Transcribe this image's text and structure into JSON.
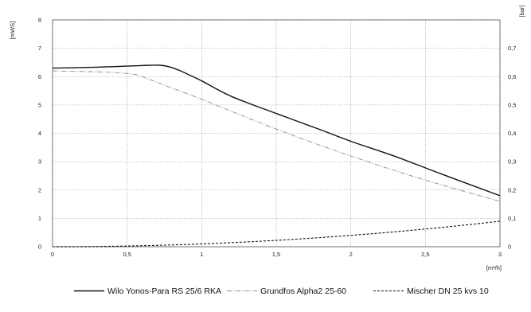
{
  "chart_data": {
    "type": "line",
    "title": "",
    "xlabel": "[m³/h]",
    "ylabel": "[mWS]",
    "y2label": "[bar]",
    "xlim": [
      0,
      3
    ],
    "ylim": [
      0,
      8
    ],
    "y2lim": [
      0,
      0.8
    ],
    "grid": true,
    "legend_position": "bottom",
    "x_ticks": [
      {
        "value": 0,
        "label": "0"
      },
      {
        "value": 0.5,
        "label": "0,5"
      },
      {
        "value": 1,
        "label": "1"
      },
      {
        "value": 1.5,
        "label": "1,5"
      },
      {
        "value": 2,
        "label": "2"
      },
      {
        "value": 2.5,
        "label": "2,5"
      },
      {
        "value": 3,
        "label": "3"
      }
    ],
    "y_ticks": [
      {
        "value": 0,
        "label": "0"
      },
      {
        "value": 1,
        "label": "1"
      },
      {
        "value": 2,
        "label": "2"
      },
      {
        "value": 3,
        "label": "3"
      },
      {
        "value": 4,
        "label": "4"
      },
      {
        "value": 5,
        "label": "5"
      },
      {
        "value": 6,
        "label": "6"
      },
      {
        "value": 7,
        "label": "7"
      },
      {
        "value": 8,
        "label": "8"
      }
    ],
    "y2_ticks": [
      {
        "value": 0,
        "label": "0"
      },
      {
        "value": 0.1,
        "label": "0,1"
      },
      {
        "value": 0.2,
        "label": "0,2"
      },
      {
        "value": 0.3,
        "label": "0,3"
      },
      {
        "value": 0.4,
        "label": "0,4"
      },
      {
        "value": 0.5,
        "label": "0,5"
      },
      {
        "value": 0.6,
        "label": "0,6"
      },
      {
        "value": 0.7,
        "label": "0,7"
      }
    ],
    "series": [
      {
        "name": "Wilo Yonos-Para RS 25/6 RKA",
        "style": "solid",
        "color": "#111111",
        "x": [
          0,
          0.2,
          0.4,
          0.55,
          0.65,
          0.72,
          0.78,
          0.85,
          0.92,
          1.0,
          1.2,
          1.5,
          1.8,
          2.0,
          2.3,
          2.6,
          3.0
        ],
        "y": [
          6.3,
          6.32,
          6.35,
          6.38,
          6.4,
          6.4,
          6.35,
          6.22,
          6.05,
          5.85,
          5.3,
          4.7,
          4.12,
          3.72,
          3.18,
          2.58,
          1.8
        ]
      },
      {
        "name": "Grundfos Alpha2 25-60",
        "style": "dash-dot",
        "color": "#8a8a8a",
        "x": [
          0,
          0.2,
          0.4,
          0.55,
          0.6,
          0.7,
          0.8,
          1.0,
          1.5,
          2.0,
          2.5,
          3.0
        ],
        "y": [
          6.2,
          6.18,
          6.15,
          6.08,
          6.0,
          5.8,
          5.6,
          5.2,
          4.15,
          3.2,
          2.35,
          1.6
        ]
      },
      {
        "name": "Mischer DN 25 kvs 10",
        "style": "dashed",
        "color": "#111111",
        "x": [
          0,
          0.25,
          0.5,
          0.75,
          1.0,
          1.25,
          1.5,
          1.75,
          2.0,
          2.25,
          2.5,
          2.75,
          3.0
        ],
        "y": [
          0,
          0.006,
          0.025,
          0.056,
          0.1,
          0.156,
          0.225,
          0.306,
          0.4,
          0.506,
          0.625,
          0.756,
          0.9
        ]
      }
    ]
  }
}
